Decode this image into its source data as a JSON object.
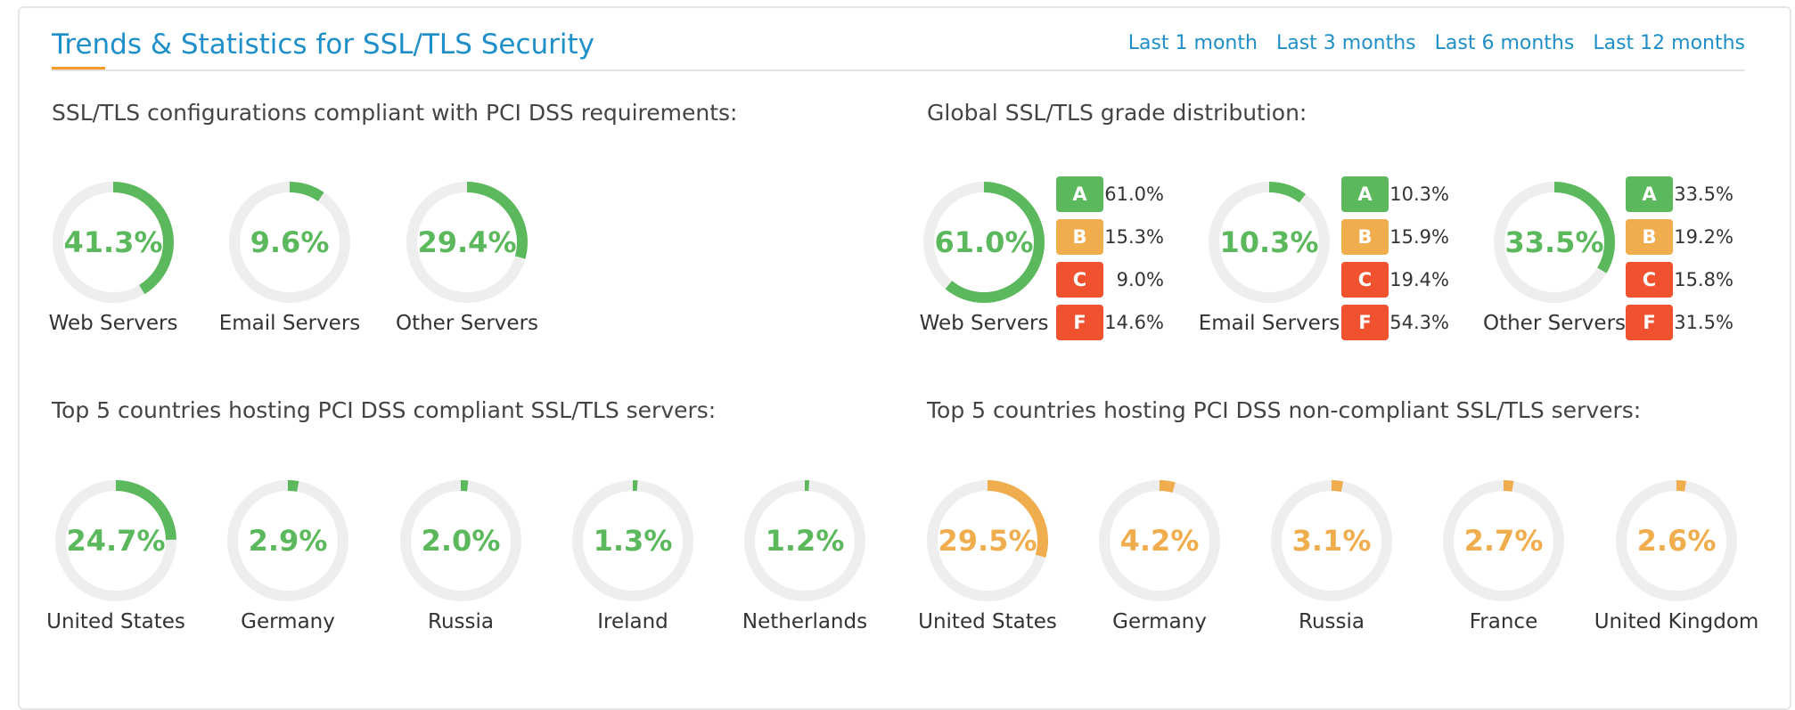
{
  "header": {
    "title": "Trends & Statistics for SSL/TLS Security",
    "ranges": [
      "Last 1 month",
      "Last 3 months",
      "Last 6 months",
      "Last 12 months"
    ]
  },
  "colors": {
    "accent": "#1f8fc9",
    "compliant": "#5cb85c",
    "noncompliant": "#f0ad4e",
    "ring_bg": "#eeeeee",
    "grade_a": "#5cb85c",
    "grade_b": "#f0ad4e",
    "grade_c": "#f0522f",
    "grade_f": "#f0522f"
  },
  "pci": {
    "title": "SSL/TLS configurations compliant with PCI DSS requirements:",
    "items": [
      {
        "label": "Web Servers",
        "value": "41.3%",
        "pct": 41.3
      },
      {
        "label": "Email Servers",
        "value": "9.6%",
        "pct": 9.6
      },
      {
        "label": "Other Servers",
        "value": "29.4%",
        "pct": 29.4
      }
    ]
  },
  "grades": {
    "title": "Global SSL/TLS grade distribution:",
    "items": [
      {
        "label": "Web Servers",
        "value": "61.0%",
        "pct": 61.0,
        "grades": [
          {
            "grade": "A",
            "value": "61.0%"
          },
          {
            "grade": "B",
            "value": "15.3%"
          },
          {
            "grade": "C",
            "value": "9.0%"
          },
          {
            "grade": "F",
            "value": "14.6%"
          }
        ]
      },
      {
        "label": "Email Servers",
        "value": "10.3%",
        "pct": 10.3,
        "grades": [
          {
            "grade": "A",
            "value": "10.3%"
          },
          {
            "grade": "B",
            "value": "15.9%"
          },
          {
            "grade": "C",
            "value": "19.4%"
          },
          {
            "grade": "F",
            "value": "54.3%"
          }
        ]
      },
      {
        "label": "Other Servers",
        "value": "33.5%",
        "pct": 33.5,
        "grades": [
          {
            "grade": "A",
            "value": "33.5%"
          },
          {
            "grade": "B",
            "value": "19.2%"
          },
          {
            "grade": "C",
            "value": "15.8%"
          },
          {
            "grade": "F",
            "value": "31.5%"
          }
        ]
      }
    ]
  },
  "compliant_countries": {
    "title": "Top 5 countries hosting PCI DSS compliant SSL/TLS servers:",
    "items": [
      {
        "label": "United States",
        "value": "24.7%",
        "pct": 24.7
      },
      {
        "label": "Germany",
        "value": "2.9%",
        "pct": 2.9
      },
      {
        "label": "Russia",
        "value": "2.0%",
        "pct": 2.0
      },
      {
        "label": "Ireland",
        "value": "1.3%",
        "pct": 1.3
      },
      {
        "label": "Netherlands",
        "value": "1.2%",
        "pct": 1.2
      }
    ]
  },
  "noncompliant_countries": {
    "title": "Top 5 countries hosting PCI DSS non-compliant SSL/TLS servers:",
    "items": [
      {
        "label": "United States",
        "value": "29.5%",
        "pct": 29.5
      },
      {
        "label": "Germany",
        "value": "4.2%",
        "pct": 4.2
      },
      {
        "label": "Russia",
        "value": "3.1%",
        "pct": 3.1
      },
      {
        "label": "France",
        "value": "2.7%",
        "pct": 2.7
      },
      {
        "label": "United Kingdom",
        "value": "2.6%",
        "pct": 2.6
      }
    ]
  }
}
